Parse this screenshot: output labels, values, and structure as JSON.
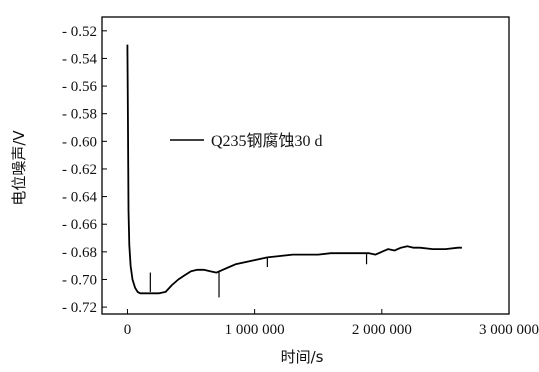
{
  "chart_data": {
    "type": "line",
    "xlabel": "时间/s",
    "ylabel": "电位噪声/V",
    "xlim": [
      -200000,
      3000000
    ],
    "ylim": [
      -0.725,
      -0.51
    ],
    "x_ticks": [
      0,
      1000000,
      2000000,
      3000000
    ],
    "x_tick_labels": [
      "0",
      "1 000 000",
      "2 000 000",
      "3 000 000"
    ],
    "y_ticks": [
      -0.52,
      -0.54,
      -0.56,
      -0.58,
      -0.6,
      -0.62,
      -0.64,
      -0.66,
      -0.68,
      -0.7,
      -0.72
    ],
    "y_tick_labels": [
      "- 0.52",
      "- 0.54",
      "- 0.56",
      "- 0.58",
      "- 0.60",
      "- 0.62",
      "- 0.64",
      "- 0.66",
      "- 0.68",
      "- 0.70",
      "- 0.72"
    ],
    "grid": false,
    "legend_position": "upper-middle",
    "series": [
      {
        "name": "Q235钢腐蚀30 d",
        "color": "#000000",
        "x": [
          0,
          4000,
          8000,
          15000,
          25000,
          40000,
          60000,
          80000,
          100000,
          150000,
          200000,
          250000,
          300000,
          350000,
          400000,
          450000,
          500000,
          550000,
          600000,
          650000,
          700000,
          750000,
          800000,
          850000,
          900000,
          1000000,
          1100000,
          1200000,
          1300000,
          1400000,
          1500000,
          1600000,
          1700000,
          1800000,
          1900000,
          1950000,
          2000000,
          2050000,
          2100000,
          2150000,
          2200000,
          2250000,
          2300000,
          2400000,
          2500000,
          2600000,
          2630000
        ],
        "y": [
          -0.53,
          -0.58,
          -0.65,
          -0.675,
          -0.69,
          -0.7,
          -0.706,
          -0.709,
          -0.71,
          -0.71,
          -0.71,
          -0.71,
          -0.709,
          -0.704,
          -0.7,
          -0.697,
          -0.694,
          -0.693,
          -0.693,
          -0.694,
          -0.695,
          -0.693,
          -0.691,
          -0.689,
          -0.688,
          -0.686,
          -0.684,
          -0.683,
          -0.682,
          -0.682,
          -0.682,
          -0.681,
          -0.681,
          -0.681,
          -0.681,
          -0.682,
          -0.68,
          -0.678,
          -0.679,
          -0.677,
          -0.676,
          -0.677,
          -0.677,
          -0.678,
          -0.678,
          -0.677,
          -0.677
        ],
        "transients": [
          {
            "x": 180000,
            "y_top": -0.695,
            "y_bottom": -0.709
          },
          {
            "x": 720000,
            "y_top": -0.694,
            "y_bottom": -0.713
          },
          {
            "x": 1100000,
            "y_top": -0.684,
            "y_bottom": -0.691
          },
          {
            "x": 1880000,
            "y_top": -0.681,
            "y_bottom": -0.689
          }
        ]
      }
    ]
  }
}
